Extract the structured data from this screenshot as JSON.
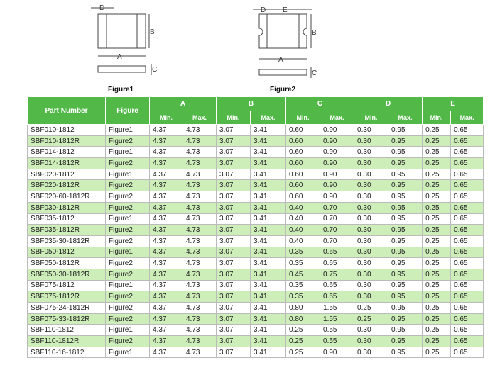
{
  "figures": [
    {
      "caption": "Figure1",
      "labels": {
        "d": "D",
        "b": "B",
        "a": "A",
        "c": "C"
      }
    },
    {
      "caption": "Figure2",
      "labels": {
        "d": "D",
        "e": "E",
        "b": "B",
        "a": "A",
        "c": "C"
      }
    }
  ],
  "table": {
    "header": [
      "Part Number",
      "Figure",
      "A",
      "B",
      "C",
      "D",
      "E"
    ],
    "subheader": [
      "Min.",
      "Max.",
      "Min.",
      "Max.",
      "Min.",
      "Max.",
      "Min.",
      "Max.",
      "Min.",
      "Max."
    ],
    "rows": [
      [
        "SBF010-1812",
        "Figure1",
        "4.37",
        "4.73",
        "3.07",
        "3.41",
        "0.60",
        "0.90",
        "0.30",
        "0.95",
        "0.25",
        "0.65"
      ],
      [
        "SBF010-1812R",
        "Figure2",
        "4.37",
        "4.73",
        "3.07",
        "3.41",
        "0.60",
        "0.90",
        "0.30",
        "0.95",
        "0.25",
        "0.65"
      ],
      [
        "SBF014-1812",
        "Figure1",
        "4.37",
        "4.73",
        "3.07",
        "3.41",
        "0.60",
        "0.90",
        "0.30",
        "0.95",
        "0.25",
        "0.65"
      ],
      [
        "SBF014-1812R",
        "Figure2",
        "4.37",
        "4.73",
        "3.07",
        "3.41",
        "0.60",
        "0.90",
        "0.30",
        "0.95",
        "0.25",
        "0.65"
      ],
      [
        "SBF020-1812",
        "Figure1",
        "4.37",
        "4.73",
        "3.07",
        "3.41",
        "0.60",
        "0.90",
        "0.30",
        "0.95",
        "0.25",
        "0.65"
      ],
      [
        "SBF020-1812R",
        "Figure2",
        "4.37",
        "4.73",
        "3.07",
        "3.41",
        "0.60",
        "0.90",
        "0.30",
        "0.95",
        "0.25",
        "0.65"
      ],
      [
        "SBF020-60-1812R",
        "Figure2",
        "4.37",
        "4.73",
        "3.07",
        "3.41",
        "0.60",
        "0.90",
        "0.30",
        "0.95",
        "0.25",
        "0.65"
      ],
      [
        "SBF030-1812R",
        "Figure2",
        "4.37",
        "4.73",
        "3.07",
        "3.41",
        "0.40",
        "0.70",
        "0.30",
        "0.95",
        "0.25",
        "0.65"
      ],
      [
        "SBF035-1812",
        "Figure1",
        "4.37",
        "4.73",
        "3.07",
        "3.41",
        "0.40",
        "0.70",
        "0.30",
        "0.95",
        "0.25",
        "0.65"
      ],
      [
        "SBF035-1812R",
        "Figure2",
        "4.37",
        "4.73",
        "3.07",
        "3.41",
        "0.40",
        "0.70",
        "0.30",
        "0.95",
        "0.25",
        "0.65"
      ],
      [
        "SBF035-30-1812R",
        "Figure2",
        "4.37",
        "4.73",
        "3.07",
        "3.41",
        "0.40",
        "0.70",
        "0.30",
        "0.95",
        "0.25",
        "0.65"
      ],
      [
        "SBF050-1812",
        "Figure1",
        "4.37",
        "4.73",
        "3.07",
        "3.41",
        "0.35",
        "0.65",
        "0.30",
        "0.95",
        "0.25",
        "0.65"
      ],
      [
        "SBF050-1812R",
        "Figure2",
        "4.37",
        "4.73",
        "3.07",
        "3.41",
        "0.35",
        "0.65",
        "0.30",
        "0.95",
        "0.25",
        "0.65"
      ],
      [
        "SBF050-30-1812R",
        "Figure2",
        "4.37",
        "4.73",
        "3.07",
        "3.41",
        "0.45",
        "0.75",
        "0.30",
        "0.95",
        "0.25",
        "0.65"
      ],
      [
        "SBF075-1812",
        "Figure1",
        "4.37",
        "4.73",
        "3.07",
        "3.41",
        "0.35",
        "0.65",
        "0.30",
        "0.95",
        "0.25",
        "0.65"
      ],
      [
        "SBF075-1812R",
        "Figure2",
        "4.37",
        "4.73",
        "3.07",
        "3.41",
        "0.35",
        "0.65",
        "0.30",
        "0.95",
        "0.25",
        "0.65"
      ],
      [
        "SBF075-24-1812R",
        "Figure2",
        "4.37",
        "4.73",
        "3.07",
        "3.41",
        "0.80",
        "1.55",
        "0.25",
        "0.95",
        "0.25",
        "0.65"
      ],
      [
        "SBF075-33-1812R",
        "Figure2",
        "4.37",
        "4.73",
        "3.07",
        "3.41",
        "0.80",
        "1.55",
        "0.25",
        "0.95",
        "0.25",
        "0.65"
      ],
      [
        "SBF110-1812",
        "Figure1",
        "4.37",
        "4.73",
        "3.07",
        "3.41",
        "0.25",
        "0.55",
        "0.30",
        "0.95",
        "0.25",
        "0.65"
      ],
      [
        "SBF110-1812R",
        "Figure2",
        "4.37",
        "4.73",
        "3.07",
        "3.41",
        "0.25",
        "0.55",
        "0.30",
        "0.95",
        "0.25",
        "0.65"
      ],
      [
        "SBF110-16-1812",
        "Figure1",
        "4.37",
        "4.73",
        "3.07",
        "3.41",
        "0.25",
        "0.90",
        "0.30",
        "0.95",
        "0.25",
        "0.65"
      ]
    ]
  }
}
